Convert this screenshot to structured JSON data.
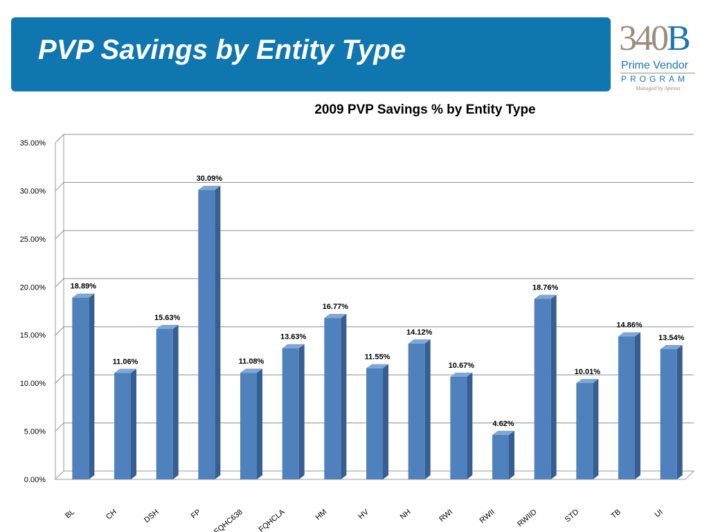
{
  "slide": {
    "title": "PVP Savings by Entity Type"
  },
  "logo": {
    "number": "340",
    "letter": "B",
    "line1": "Prime Vendor",
    "line2": "PROGRAM",
    "tagline": "Managed by Apexus"
  },
  "colors": {
    "banner": "#0f76b0",
    "bar_front": "#4f81bd",
    "bar_side": "#365f91",
    "bar_top": "#7fa7d6"
  },
  "chart_data": {
    "type": "bar",
    "title": "2009 PVP Savings % by Entity Type",
    "xlabel": "",
    "ylabel": "",
    "ylim": [
      0,
      35
    ],
    "yticks": [
      "0.00%",
      "5.00%",
      "10.00%",
      "15.00%",
      "20.00%",
      "25.00%",
      "30.00%",
      "35.00%"
    ],
    "grid": true,
    "style": "3d-column",
    "categories": [
      "BL",
      "CH",
      "DSH",
      "FP",
      "FQHC638",
      "FQHCLA",
      "HM",
      "HV",
      "NH",
      "RWI",
      "RWII",
      "RWIID",
      "STD",
      "TB",
      "UI"
    ],
    "values": [
      18.89,
      11.06,
      15.63,
      30.09,
      11.08,
      13.63,
      16.77,
      11.55,
      14.12,
      10.67,
      4.62,
      18.76,
      10.01,
      14.86,
      13.54
    ],
    "data_labels": [
      "18.89%",
      "11.06%",
      "15.63%",
      "30.09%",
      "11.08%",
      "13.63%",
      "16.77%",
      "11.55%",
      "14.12%",
      "10.67%",
      "4.62%",
      "18.76%",
      "10.01%",
      "14.86%",
      "13.54%"
    ]
  }
}
